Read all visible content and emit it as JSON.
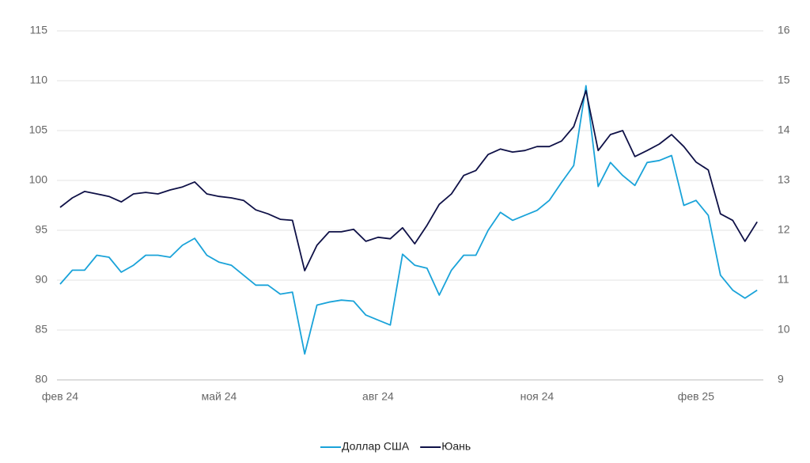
{
  "chart_data": {
    "type": "line",
    "categories": [
      "фев 24",
      null,
      null,
      null,
      null,
      null,
      null,
      null,
      null,
      null,
      null,
      null,
      null,
      "май 24",
      null,
      null,
      null,
      null,
      null,
      null,
      null,
      null,
      null,
      null,
      null,
      null,
      "авг 24",
      null,
      null,
      null,
      null,
      null,
      null,
      null,
      null,
      null,
      null,
      null,
      null,
      "ноя 24",
      null,
      null,
      null,
      null,
      null,
      null,
      null,
      null,
      null,
      null,
      null,
      null,
      "фев 25",
      null,
      null,
      null,
      null,
      null
    ],
    "series": [
      {
        "name": "Доллар США",
        "color": "#1aa3d9",
        "values": [
          89.6,
          91,
          91,
          92.5,
          92.3,
          90.8,
          91.5,
          92.5,
          92.5,
          92.3,
          93.5,
          94.2,
          92.5,
          91.8,
          91.5,
          90.5,
          89.5,
          89.5,
          88.6,
          88.8,
          82.6,
          87.5,
          87.8,
          88,
          87.9,
          86.5,
          86,
          85.5,
          92.6,
          91.5,
          91.2,
          88.5,
          91,
          92.5,
          92.5,
          95,
          96.8,
          96,
          96.5,
          97,
          98,
          99.8,
          101.5,
          109.5,
          99.4,
          101.8,
          100.5,
          99.5,
          101.8,
          102,
          102.5,
          97.5,
          98,
          96.5,
          90.5,
          89,
          88.2,
          89
        ]
      },
      {
        "name": "Юань",
        "color": "#0f1147",
        "axis": "y2",
        "values": [
          12.46,
          12.65,
          12.78,
          12.73,
          12.68,
          12.57,
          12.73,
          12.76,
          12.73,
          12.81,
          12.87,
          12.97,
          12.73,
          12.68,
          12.65,
          12.6,
          12.41,
          12.33,
          12.22,
          12.2,
          11.19,
          11.7,
          11.97,
          11.97,
          12.02,
          11.78,
          11.86,
          11.83,
          12.05,
          11.73,
          12.1,
          12.52,
          12.73,
          13.1,
          13.2,
          13.52,
          13.63,
          13.57,
          13.6,
          13.68,
          13.68,
          13.79,
          14.08,
          14.8,
          13.6,
          13.92,
          14,
          13.48,
          13.6,
          13.73,
          13.92,
          13.68,
          13.37,
          13.21,
          12.33,
          12.2,
          11.78,
          12.17
        ]
      }
    ],
    "ylim": [
      80,
      115
    ],
    "yticks": [
      80,
      85,
      90,
      95,
      100,
      105,
      110,
      115
    ],
    "y2lim": [
      9,
      16
    ],
    "y2ticks": [
      9,
      10,
      11,
      12,
      13,
      14,
      15,
      16
    ],
    "grid": true,
    "legend": "bottom"
  }
}
